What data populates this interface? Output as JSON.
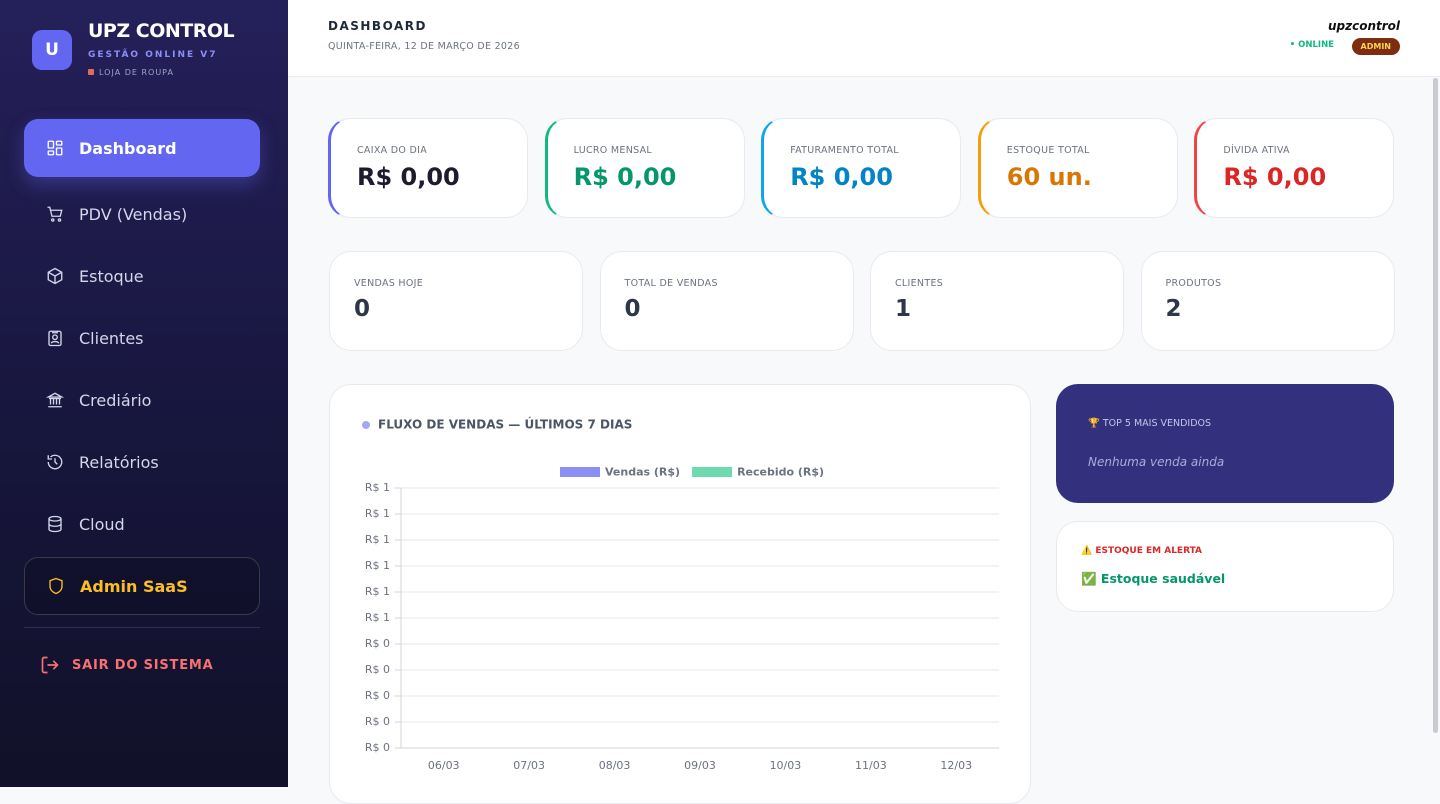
{
  "sidebar": {
    "logo_letter": "U",
    "brand": "UPZ CONTROL",
    "subtitle": "GESTÃO ONLINE V7",
    "store": "LOJA DE ROUPA",
    "nav": [
      "Dashboard",
      "PDV (Vendas)",
      "Estoque",
      "Clientes",
      "Crediário",
      "Relatórios",
      "Cloud"
    ],
    "admin": "Admin SaaS",
    "logout": "SAIR DO SISTEMA"
  },
  "header": {
    "title": "DASHBOARD",
    "date": "QUINTA-FEIRA, 12 DE MARÇO DE 2026",
    "user": "upzcontrol",
    "status": "• ONLINE",
    "role": "ADMIN"
  },
  "kpis": [
    {
      "label": "CAIXA DO DIA",
      "value": "R$ 0,00"
    },
    {
      "label": "LUCRO MENSAL",
      "value": "R$ 0,00"
    },
    {
      "label": "FATURAMENTO TOTAL",
      "value": "R$ 0,00"
    },
    {
      "label": "ESTOQUE TOTAL",
      "value": "60 un."
    },
    {
      "label": "DÍVIDA ATIVA",
      "value": "R$ 0,00"
    }
  ],
  "stats": [
    {
      "label": "VENDAS HOJE",
      "value": 0
    },
    {
      "label": "TOTAL DE VENDAS",
      "value": 0
    },
    {
      "label": "CLIENTES",
      "value": 1
    },
    {
      "label": "PRODUTOS",
      "value": 2
    }
  ],
  "chart_data": {
    "type": "bar",
    "title": "FLUXO DE VENDAS — ÚLTIMOS 7 DIAS",
    "categories": [
      "06/03",
      "07/03",
      "08/03",
      "09/03",
      "10/03",
      "11/03",
      "12/03"
    ],
    "series": [
      {
        "name": "Vendas (R$)",
        "color": "#8b8ff5",
        "values": [
          0,
          0,
          0,
          0,
          0,
          0,
          0
        ]
      },
      {
        "name": "Recebido (R$)",
        "color": "#6fd9b0",
        "values": [
          0,
          0,
          0,
          0,
          0,
          0,
          0
        ]
      }
    ],
    "ylim": [
      0,
      1
    ],
    "yticks": [
      {
        "value": 1,
        "label": "R$ 1"
      },
      {
        "value": 0.9,
        "label": "R$ 1"
      },
      {
        "value": 0.8,
        "label": "R$ 1"
      },
      {
        "value": 0.7,
        "label": "R$ 1"
      },
      {
        "value": 0.6,
        "label": "R$ 1"
      },
      {
        "value": 0.5,
        "label": "R$ 1"
      },
      {
        "value": 0.4,
        "label": "R$ 0"
      },
      {
        "value": 0.3,
        "label": "R$ 0"
      },
      {
        "value": 0.2,
        "label": "R$ 0"
      },
      {
        "value": 0.1,
        "label": "R$ 0"
      },
      {
        "value": 0,
        "label": "R$ 0"
      }
    ],
    "grid": true
  },
  "top_products": {
    "title": "🏆 TOP 5 MAIS VENDIDOS",
    "empty": "Nenhuma venda ainda"
  },
  "stock_alert": {
    "title": "⚠️ ESTOQUE EM ALERTA",
    "status": "✅ Estoque saudável"
  }
}
